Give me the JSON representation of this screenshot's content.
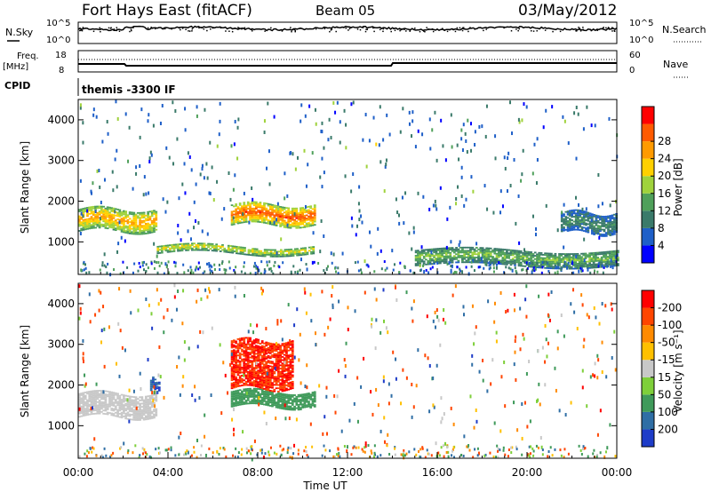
{
  "header": {
    "station": "Fort Hays East (fitACF)",
    "beam": "Beam 05",
    "date": "03/May/2012"
  },
  "top_panels": {
    "nsky_label": "N.Sky",
    "nsky_ticks": [
      "10^5",
      "10^0"
    ],
    "nsearch_label": "N.Search",
    "nsearch_ticks": [
      "10^5",
      "10^0"
    ],
    "freq_label": "Freq.",
    "freq_unit": "[MHz]",
    "freq_ticks": [
      "18",
      "8"
    ],
    "nave_label": "Nave",
    "nave_ticks": [
      "60",
      "0"
    ],
    "cpid_label": "CPID",
    "cpid_value": "themis -3300 IF"
  },
  "chart_data": [
    {
      "type": "heatmap",
      "name": "power",
      "ylabel": "Slant Range [km]",
      "xlabel": "",
      "ylim": [
        200,
        4500
      ],
      "yticks": [
        "1000",
        "2000",
        "3000",
        "4000"
      ],
      "xlim_hours": [
        0,
        24
      ],
      "colorbar": {
        "label": "Power [dB]",
        "ticks": [
          "4",
          "8",
          "12",
          "16",
          "20",
          "24",
          "28"
        ],
        "range": [
          0,
          32
        ],
        "colors": [
          "#0000ff",
          "#1e5fc8",
          "#3a7a6a",
          "#4fa05a",
          "#9fd23c",
          "#ffd000",
          "#ff9a00",
          "#ff5a00",
          "#ff0000"
        ]
      },
      "features": [
        {
          "name": "band-1500km-early",
          "t_start": 0,
          "t_end": 3.5,
          "range_km": [
            1250,
            1800
          ],
          "power_db": 22
        },
        {
          "name": "band-1600km-evening",
          "t_start": 6.8,
          "t_end": 10.5,
          "range_km": [
            1400,
            1900
          ],
          "power_db": 26
        },
        {
          "name": "band-800km",
          "t_start": 3.5,
          "t_end": 10.5,
          "range_km": [
            700,
            900
          ],
          "power_db": 18
        },
        {
          "name": "band-400km-late",
          "t_start": 15,
          "t_end": 24,
          "range_km": [
            400,
            800
          ],
          "power_db": 14
        },
        {
          "name": "band-1400km-end",
          "t_start": 21.5,
          "t_end": 24,
          "range_km": [
            1200,
            1700
          ],
          "power_db": 10
        }
      ]
    },
    {
      "type": "heatmap",
      "name": "velocity",
      "ylabel": "Slant Range [km]",
      "xlabel": "Time UT",
      "ylim": [
        200,
        4500
      ],
      "yticks": [
        "1000",
        "2000",
        "3000",
        "4000"
      ],
      "xlim_hours": [
        0,
        24
      ],
      "xticks": [
        "00:00",
        "04:00",
        "08:00",
        "12:00",
        "16:00",
        "20:00",
        "00:00"
      ],
      "colorbar": {
        "label": "Velocity [m s⁻¹]",
        "ticks": [
          "200",
          "100",
          "50",
          "15",
          "-15",
          "-50",
          "-100",
          "-200"
        ],
        "range": [
          -250,
          250
        ],
        "colors": [
          "#1e3cc8",
          "#2f6ea5",
          "#3f9a5a",
          "#7ecf3a",
          "#c8c8c8",
          "#ffc000",
          "#ff8a00",
          "#ff4500",
          "#ff0000"
        ]
      },
      "features": [
        {
          "name": "ground-scatter-early",
          "t_start": 0,
          "t_end": 3.5,
          "range_km": [
            1200,
            1800
          ],
          "velocity": 0
        },
        {
          "name": "positive-1600km",
          "t_start": 6.8,
          "t_end": 10.5,
          "range_km": [
            1450,
            1850
          ],
          "velocity": 80
        },
        {
          "name": "negative-2200km",
          "t_start": 6.8,
          "t_end": 9.5,
          "range_km": [
            1900,
            3100
          ],
          "velocity": -200
        },
        {
          "name": "positive-blob-2000km",
          "t_start": 3.2,
          "t_end": 3.6,
          "range_km": [
            1850,
            2100
          ],
          "velocity": 200
        }
      ]
    }
  ]
}
